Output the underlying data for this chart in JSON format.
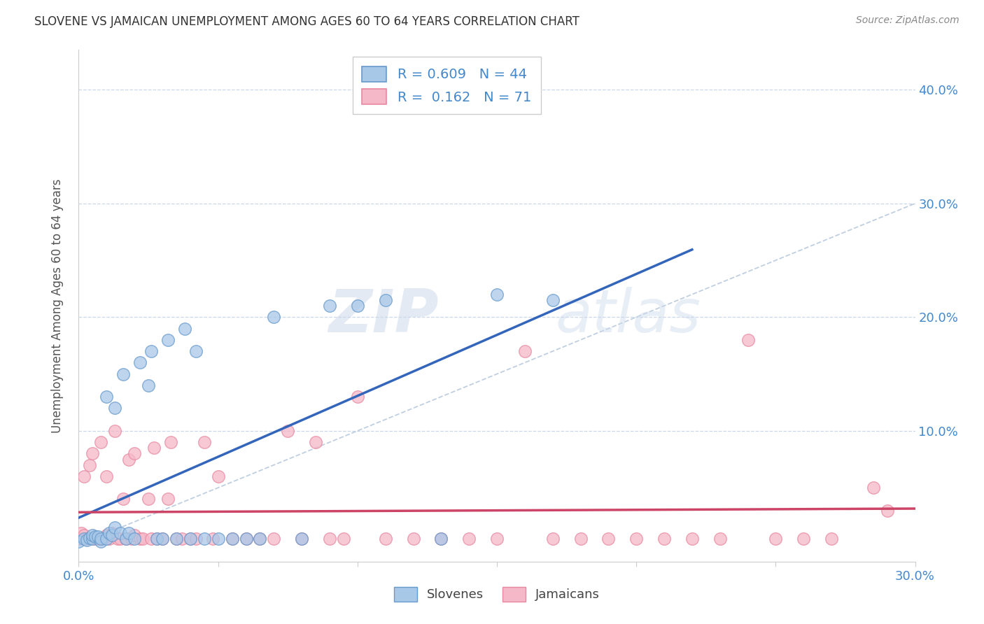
{
  "title": "SLOVENE VS JAMAICAN UNEMPLOYMENT AMONG AGES 60 TO 64 YEARS CORRELATION CHART",
  "source": "Source: ZipAtlas.com",
  "ylabel": "Unemployment Among Ages 60 to 64 years",
  "xlim": [
    0.0,
    0.3
  ],
  "ylim": [
    -0.015,
    0.435
  ],
  "x_ticks": [
    0.0,
    0.05,
    0.1,
    0.15,
    0.2,
    0.25,
    0.3
  ],
  "x_tick_labels": [
    "0.0%",
    "",
    "",
    "",
    "",
    "",
    "30.0%"
  ],
  "y_ticks": [
    0.0,
    0.1,
    0.2,
    0.3,
    0.4
  ],
  "y_tick_labels": [
    "",
    "10.0%",
    "20.0%",
    "30.0%",
    "40.0%"
  ],
  "slovene_color": "#a8c8e8",
  "jamaican_color": "#f5b8c8",
  "slovene_edge_color": "#6699cc",
  "jamaican_edge_color": "#e888a0",
  "slovene_line_color": "#3366bb",
  "jamaican_line_color": "#cc4466",
  "diagonal_color": "#c0cfe0",
  "R_slovene": 0.609,
  "N_slovene": 44,
  "R_jamaican": 0.162,
  "N_jamaican": 71,
  "slovene_x": [
    0.0,
    0.002,
    0.003,
    0.004,
    0.005,
    0.005,
    0.006,
    0.007,
    0.008,
    0.008,
    0.01,
    0.01,
    0.011,
    0.012,
    0.013,
    0.013,
    0.015,
    0.016,
    0.017,
    0.018,
    0.02,
    0.022,
    0.025,
    0.026,
    0.028,
    0.03,
    0.032,
    0.035,
    0.038,
    0.04,
    0.042,
    0.045,
    0.05,
    0.055,
    0.06,
    0.065,
    0.07,
    0.08,
    0.09,
    0.1,
    0.11,
    0.13,
    0.15,
    0.17
  ],
  "slovene_y": [
    0.003,
    0.005,
    0.004,
    0.006,
    0.005,
    0.008,
    0.007,
    0.007,
    0.003,
    0.005,
    0.005,
    0.13,
    0.01,
    0.008,
    0.12,
    0.015,
    0.01,
    0.15,
    0.005,
    0.01,
    0.005,
    0.16,
    0.14,
    0.17,
    0.005,
    0.005,
    0.18,
    0.005,
    0.19,
    0.005,
    0.17,
    0.005,
    0.005,
    0.005,
    0.005,
    0.005,
    0.2,
    0.005,
    0.21,
    0.21,
    0.215,
    0.005,
    0.22,
    0.215
  ],
  "jamaican_x": [
    0.0,
    0.001,
    0.002,
    0.002,
    0.003,
    0.004,
    0.005,
    0.005,
    0.006,
    0.007,
    0.008,
    0.008,
    0.009,
    0.01,
    0.01,
    0.011,
    0.012,
    0.013,
    0.014,
    0.015,
    0.016,
    0.017,
    0.018,
    0.019,
    0.02,
    0.02,
    0.022,
    0.023,
    0.025,
    0.026,
    0.027,
    0.028,
    0.03,
    0.032,
    0.033,
    0.035,
    0.037,
    0.04,
    0.042,
    0.045,
    0.048,
    0.05,
    0.055,
    0.06,
    0.065,
    0.07,
    0.075,
    0.08,
    0.085,
    0.09,
    0.095,
    0.1,
    0.11,
    0.12,
    0.13,
    0.14,
    0.15,
    0.16,
    0.17,
    0.18,
    0.19,
    0.2,
    0.21,
    0.22,
    0.23,
    0.24,
    0.25,
    0.26,
    0.27,
    0.285,
    0.29
  ],
  "jamaican_y": [
    0.005,
    0.01,
    0.008,
    0.06,
    0.005,
    0.07,
    0.005,
    0.08,
    0.005,
    0.005,
    0.005,
    0.09,
    0.005,
    0.008,
    0.06,
    0.005,
    0.01,
    0.1,
    0.005,
    0.005,
    0.04,
    0.005,
    0.075,
    0.005,
    0.008,
    0.08,
    0.005,
    0.005,
    0.04,
    0.005,
    0.085,
    0.005,
    0.005,
    0.04,
    0.09,
    0.005,
    0.005,
    0.005,
    0.005,
    0.09,
    0.005,
    0.06,
    0.005,
    0.005,
    0.005,
    0.005,
    0.1,
    0.005,
    0.09,
    0.005,
    0.005,
    0.13,
    0.005,
    0.005,
    0.005,
    0.005,
    0.005,
    0.17,
    0.005,
    0.005,
    0.005,
    0.005,
    0.005,
    0.005,
    0.005,
    0.18,
    0.005,
    0.005,
    0.005,
    0.05,
    0.03
  ],
  "watermark_zip": "ZIP",
  "watermark_atlas": "atlas",
  "background_color": "#ffffff",
  "grid_color": "#c8d8e8",
  "tick_label_color": "#4488cc",
  "title_color": "#333333",
  "source_color": "#888888",
  "ylabel_color": "#555555"
}
